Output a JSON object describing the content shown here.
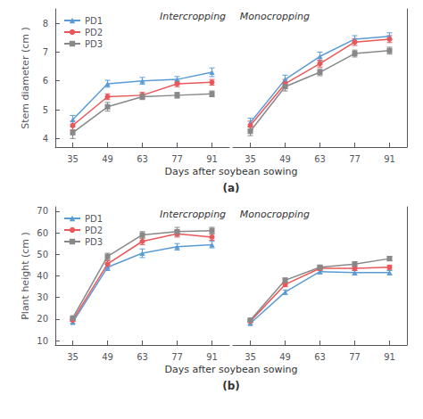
{
  "chart_data": [
    {
      "type": "line",
      "title": "(a)",
      "xlabel": "Days after soybean sowing",
      "ylabel": "Stem diameter (cm )",
      "annotation": "Intercropping",
      "x": [
        35,
        49,
        63,
        77,
        91
      ],
      "xlim": [
        28,
        98
      ],
      "xticks": [
        35,
        49,
        63,
        77,
        91
      ],
      "ylim": [
        3.7,
        8.5
      ],
      "yticks": [
        4,
        5,
        6,
        7,
        8
      ],
      "grid": false,
      "legend": "upper left",
      "series": [
        {
          "name": "PD1",
          "color": "#5b9bd5",
          "marker": "triangle",
          "values": [
            4.65,
            5.9,
            6.0,
            6.05,
            6.3
          ],
          "errors": [
            0.15,
            0.12,
            0.12,
            0.1,
            0.15
          ]
        },
        {
          "name": "PD2",
          "color": "#e8585a",
          "marker": "circle",
          "values": [
            4.45,
            5.45,
            5.5,
            5.9,
            5.95
          ],
          "errors": [
            0.15,
            0.1,
            0.1,
            0.1,
            0.1
          ]
        },
        {
          "name": "PD3",
          "color": "#888888",
          "marker": "square",
          "values": [
            4.2,
            5.1,
            5.45,
            5.5,
            5.55
          ],
          "errors": [
            0.2,
            0.15,
            0.1,
            0.1,
            0.1
          ]
        }
      ]
    },
    {
      "type": "line",
      "annotation": "Monocropping",
      "x": [
        35,
        49,
        63,
        77,
        91
      ],
      "xlim": [
        28,
        98
      ],
      "xticks": [
        35,
        49,
        63,
        77,
        91
      ],
      "ylim": [
        3.7,
        8.5
      ],
      "grid": false,
      "tick_labels": "x",
      "series": [
        {
          "name": "PD1",
          "color": "#5b9bd5",
          "marker": "triangle",
          "values": [
            4.55,
            6.05,
            6.85,
            7.45,
            7.55
          ],
          "errors": [
            0.15,
            0.15,
            0.15,
            0.12,
            0.12
          ]
        },
        {
          "name": "PD2",
          "color": "#e8585a",
          "marker": "circle",
          "values": [
            4.45,
            5.9,
            6.6,
            7.35,
            7.45
          ],
          "errors": [
            0.15,
            0.15,
            0.12,
            0.12,
            0.12
          ]
        },
        {
          "name": "PD3",
          "color": "#888888",
          "marker": "square",
          "values": [
            4.25,
            5.8,
            6.3,
            6.95,
            7.05
          ],
          "errors": [
            0.15,
            0.15,
            0.12,
            0.12,
            0.12
          ]
        }
      ]
    },
    {
      "type": "line",
      "title": "(b)",
      "xlabel": "Days after soybean sowing",
      "ylabel": "Plant height (cm )",
      "annotation": "Intercropping",
      "x": [
        35,
        49,
        63,
        77,
        91
      ],
      "xlim": [
        28,
        98
      ],
      "xticks": [
        35,
        49,
        63,
        77,
        91
      ],
      "ylim": [
        8,
        72
      ],
      "yticks": [
        10,
        20,
        30,
        40,
        50,
        60,
        70
      ],
      "grid": false,
      "legend": "upper left",
      "series": [
        {
          "name": "PD1",
          "color": "#5b9bd5",
          "marker": "triangle",
          "values": [
            18.5,
            44.0,
            50.5,
            53.5,
            54.5
          ],
          "errors": [
            0.5,
            1.5,
            2.0,
            1.5,
            1.5
          ]
        },
        {
          "name": "PD2",
          "color": "#e8585a",
          "marker": "circle",
          "values": [
            19.5,
            45.5,
            56.0,
            59.5,
            58.0
          ],
          "errors": [
            0.5,
            1.5,
            1.5,
            1.5,
            1.5
          ]
        },
        {
          "name": "PD3",
          "color": "#888888",
          "marker": "square",
          "values": [
            20.5,
            49.0,
            59.0,
            60.5,
            61.0
          ],
          "errors": [
            0.5,
            1.5,
            1.5,
            2.0,
            1.5
          ]
        }
      ]
    },
    {
      "type": "line",
      "annotation": "Monocropping",
      "x": [
        35,
        49,
        63,
        77,
        91
      ],
      "xlim": [
        28,
        98
      ],
      "xticks": [
        35,
        49,
        63,
        77,
        91
      ],
      "ylim": [
        8,
        72
      ],
      "grid": false,
      "tick_labels": "x",
      "series": [
        {
          "name": "PD1",
          "color": "#5b9bd5",
          "marker": "triangle",
          "values": [
            18.0,
            32.5,
            42.0,
            41.5,
            41.5
          ],
          "errors": [
            0.5,
            1.0,
            1.0,
            1.0,
            1.0
          ]
        },
        {
          "name": "PD2",
          "color": "#e8585a",
          "marker": "circle",
          "values": [
            19.0,
            36.0,
            43.5,
            43.5,
            44.0
          ],
          "errors": [
            0.5,
            1.0,
            1.0,
            1.0,
            1.0
          ]
        },
        {
          "name": "PD3",
          "color": "#888888",
          "marker": "square",
          "values": [
            19.5,
            38.0,
            44.0,
            45.5,
            48.0
          ],
          "errors": [
            0.5,
            1.0,
            1.0,
            1.0,
            1.0
          ]
        }
      ]
    }
  ]
}
